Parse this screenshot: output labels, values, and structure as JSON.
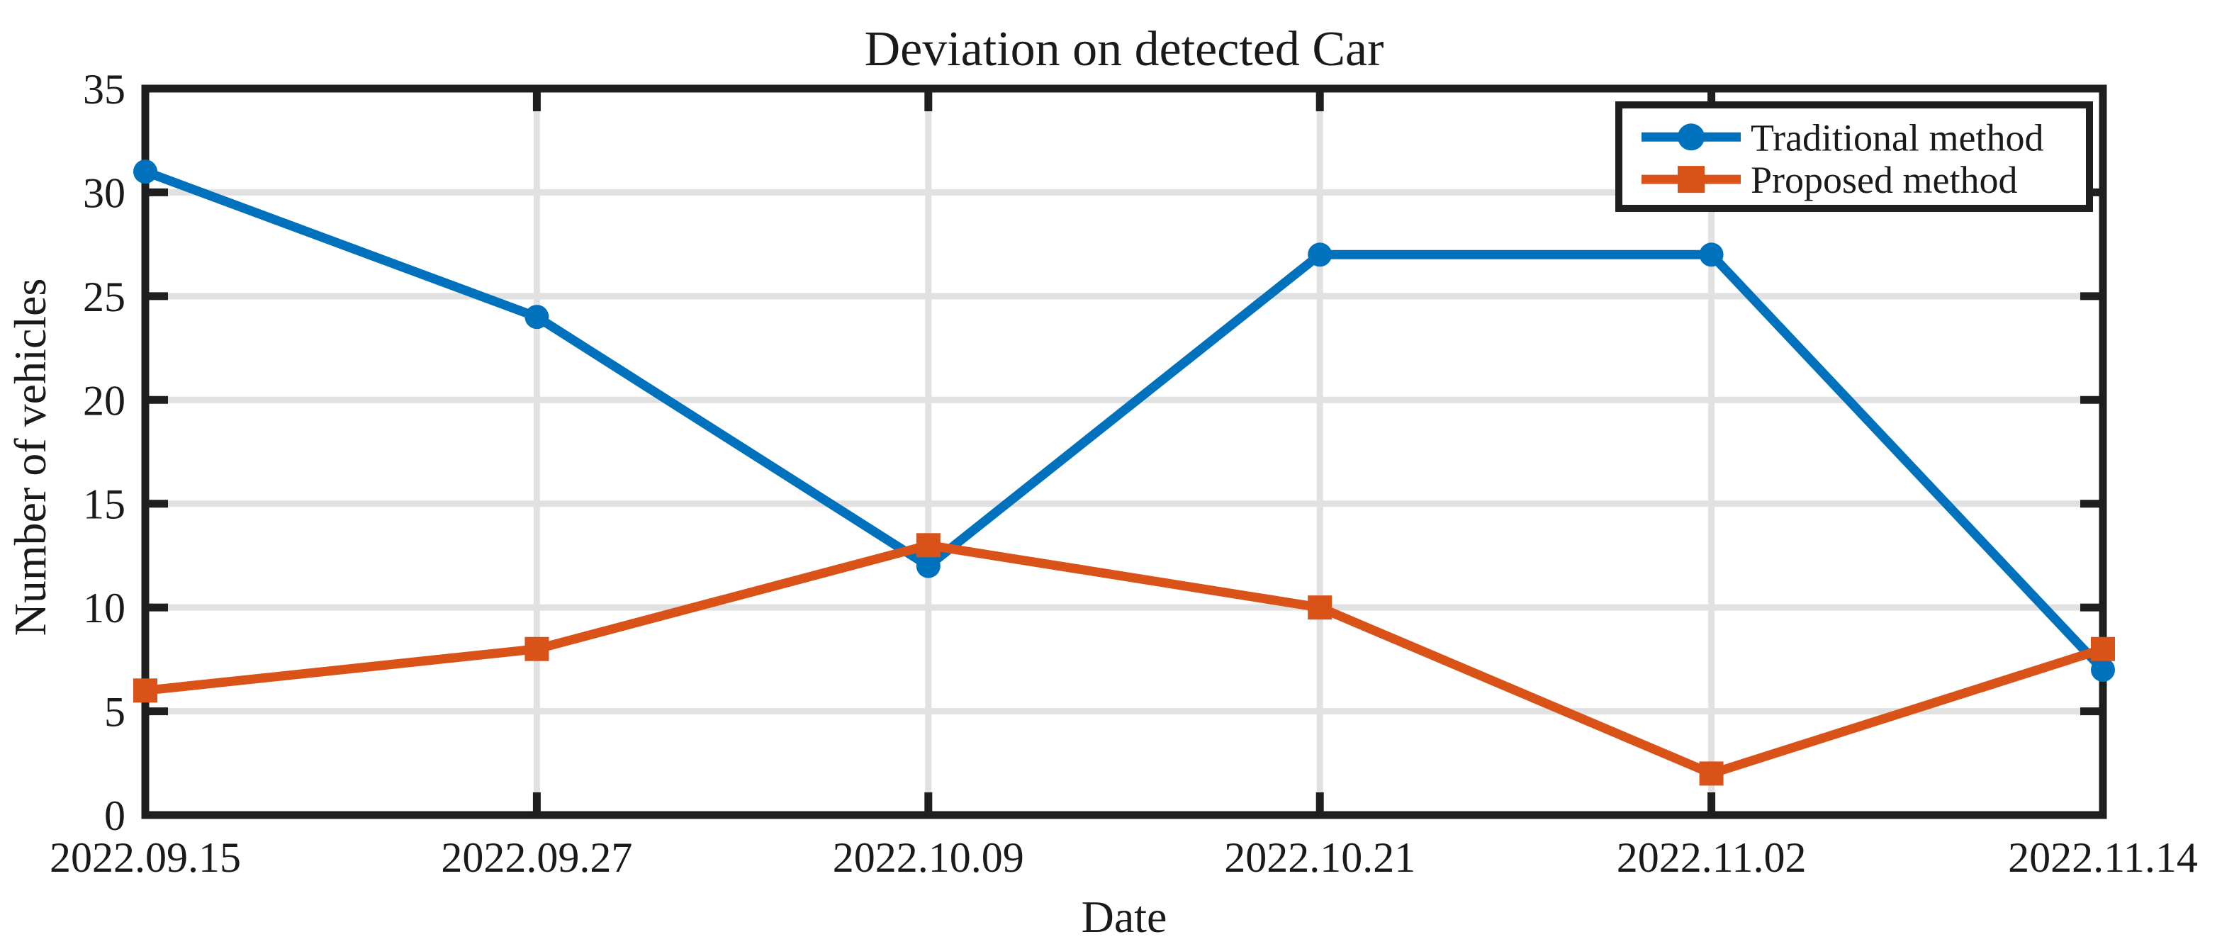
{
  "chart_data": {
    "type": "line",
    "title": "Deviation on detected Car",
    "xlabel": "Date",
    "ylabel": "Number of vehicles",
    "categories": [
      "2022.09.15",
      "2022.09.27",
      "2022.10.09",
      "2022.10.21",
      "2022.11.02",
      "2022.11.14"
    ],
    "series": [
      {
        "name": "Traditional method",
        "marker": "circle",
        "color": "#0072BD",
        "values": [
          31,
          24,
          12,
          27,
          27,
          7
        ]
      },
      {
        "name": "Proposed method",
        "marker": "square",
        "color": "#D95319",
        "values": [
          6,
          8,
          13,
          10,
          2,
          8
        ]
      }
    ],
    "ylim": [
      0,
      35
    ],
    "yticks": [
      0,
      5,
      10,
      15,
      20,
      25,
      30,
      35
    ],
    "grid": true,
    "legend_position": "top-right",
    "colors": {
      "axis": "#1F1F1F",
      "grid": "#E1E1E1",
      "background": "#FFFFFF",
      "text": "#1A1A1A"
    }
  }
}
